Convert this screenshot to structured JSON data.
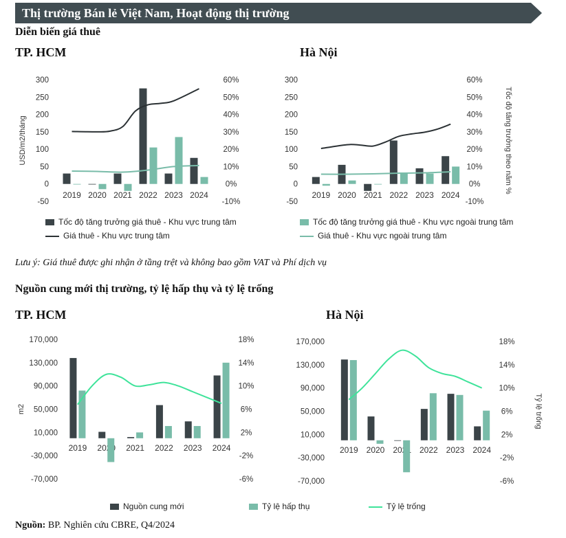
{
  "header": {
    "title": "Thị trường Bán lẻ Việt Nam, Hoạt động thị trường",
    "color": "#414d52"
  },
  "section1": {
    "title": "Diễn biến giá thuê",
    "note": "Lưu ý: Giá thuê được ghi nhận ở tầng trệt và không bao gồm VAT và Phí dịch vụ",
    "legend": {
      "bar_central": "Tốc độ tăng trưởng giá thuê - Khu vực trung tâm",
      "bar_noncentral": "Tốc độ tăng trưởng giá thuê - Khu vực ngoài trung tâm",
      "line_central": "Giá thuê - Khu vực trung tâm",
      "line_noncentral": "Giá thuê - Khu vực ngoài trung tâm"
    }
  },
  "section2": {
    "title": "Nguồn cung mới thị trường, tỷ lệ hấp thụ và tỷ lệ trống",
    "legend": {
      "supply": "Nguồn cung mới",
      "absorption": "Tỷ lệ hấp thụ",
      "vacancy": "Tỷ lệ trống"
    }
  },
  "source": {
    "label": "Nguồn:",
    "text": "BP. Nghiên cứu CBRE, Q4/2024"
  },
  "colors": {
    "dark": "#3b4448",
    "teal": "#79bca9",
    "green": "#3ee39a",
    "line_dark": "#2b3134"
  },
  "chart_data": [
    {
      "type": "bar",
      "city": "TP. HCM",
      "categories": [
        "2019",
        "2020",
        "2021",
        "2022",
        "2023",
        "2024"
      ],
      "ylabel": "USD/m2/tháng",
      "y2label": "",
      "ylim": [
        -50,
        300
      ],
      "yticks": [
        "300",
        "250",
        "200",
        "150",
        "100",
        "50",
        "0",
        "-50"
      ],
      "y2lim": [
        -10,
        60
      ],
      "y2ticks": [
        "60%",
        "50%",
        "40%",
        "30%",
        "20%",
        "10%",
        "0%",
        "-10%"
      ],
      "series": [
        {
          "name": "Tốc độ tăng trưởng giá thuê - Khu vực trung tâm",
          "kind": "bar",
          "axis": "right",
          "values": [
            6,
            0,
            6,
            55,
            6,
            15
          ]
        },
        {
          "name": "Tốc độ tăng trưởng giá thuê - Khu vực ngoài trung tâm",
          "kind": "bar",
          "axis": "right",
          "values": [
            -0.3,
            -3,
            -4,
            21,
            27,
            4
          ]
        },
        {
          "name": "Giá thuê - Khu vực trung tâm",
          "kind": "line",
          "axis": "left",
          "x": [
            0,
            1,
            1.5,
            2,
            2.5,
            3,
            3.5,
            4,
            5
          ],
          "values": [
            151,
            150,
            152,
            165,
            210,
            228,
            232,
            239,
            274
          ]
        },
        {
          "name": "Giá thuê - Khu vực ngoài trung tâm",
          "kind": "line",
          "axis": "left",
          "x": [
            0,
            1,
            2,
            3,
            4,
            5
          ],
          "values": [
            37,
            36,
            34,
            40,
            50,
            53
          ]
        }
      ]
    },
    {
      "type": "bar",
      "city": "Hà Nội",
      "categories": [
        "2019",
        "2020",
        "2021",
        "2022",
        "2023",
        "2024"
      ],
      "ylabel": "",
      "y2label": "Tốc độ tăng trưởng theo năm %",
      "ylim": [
        -50,
        300
      ],
      "yticks": [
        "300",
        "250",
        "200",
        "150",
        "100",
        "50",
        "0",
        "-50"
      ],
      "y2lim": [
        -10,
        60
      ],
      "y2ticks": [
        "60%",
        "50%",
        "40%",
        "30%",
        "20%",
        "10%",
        "0%",
        "-10%"
      ],
      "series": [
        {
          "name": "Tốc độ tăng trưởng giá thuê - Khu vực trung tâm",
          "kind": "bar",
          "axis": "right",
          "values": [
            4,
            11,
            -4,
            25,
            9,
            16
          ]
        },
        {
          "name": "Tốc độ tăng trưởng giá thuê - Khu vực ngoài trung tâm",
          "kind": "bar",
          "axis": "right",
          "values": [
            -1,
            2,
            -0.3,
            6,
            6,
            10
          ]
        },
        {
          "name": "Giá thuê - Khu vực trung tâm",
          "kind": "line",
          "axis": "left",
          "x": [
            0,
            1,
            1.5,
            2,
            2.5,
            3,
            3.5,
            4,
            4.5,
            5
          ],
          "values": [
            102,
            113,
            112,
            109,
            121,
            137,
            144,
            149,
            158,
            172
          ]
        },
        {
          "name": "Giá thuê - Khu vực ngoài trung tâm",
          "kind": "line",
          "axis": "left",
          "x": [
            0,
            1,
            2,
            3,
            4,
            5
          ],
          "values": [
            28,
            28,
            29,
            31,
            32,
            35
          ]
        }
      ]
    },
    {
      "type": "bar",
      "city": "TP. HCM",
      "categories": [
        "2019",
        "2020",
        "2021",
        "2022",
        "2023",
        "2024"
      ],
      "ylabel": "m2",
      "y2label": "",
      "ylim": [
        -70000,
        170000
      ],
      "yticks": [
        "170,000",
        "130,000",
        "90,000",
        "50,000",
        "10,000",
        "-30,000",
        "-70,000"
      ],
      "y2lim": [
        -6,
        18
      ],
      "y2ticks": [
        "18%",
        "14%",
        "10%",
        "6%",
        "2%",
        "-2%",
        "-6%"
      ],
      "series": [
        {
          "name": "Nguồn cung mới",
          "kind": "bar",
          "axis": "left",
          "values": [
            138000,
            11000,
            2000,
            57000,
            29000,
            108000
          ]
        },
        {
          "name": "Tỷ lệ hấp thụ",
          "kind": "bar",
          "axis": "left",
          "values": [
            82000,
            -41000,
            10000,
            21000,
            21000,
            130000
          ]
        },
        {
          "name": "Tỷ lệ trống",
          "kind": "line",
          "axis": "right",
          "x": [
            0,
            0.5,
            1,
            1.5,
            2,
            2.5,
            3,
            3.5,
            4,
            4.5,
            5
          ],
          "values": [
            6.8,
            10.0,
            12.0,
            11.5,
            10.0,
            10.2,
            10.6,
            10.0,
            9.0,
            8.0,
            7.0
          ]
        }
      ]
    },
    {
      "type": "bar",
      "city": "Hà Nội",
      "categories": [
        "2019",
        "2020",
        "2021",
        "2022",
        "2023",
        "2024"
      ],
      "ylabel": "",
      "y2label": "Tỷ lệ trống",
      "ylim": [
        -70000,
        170000
      ],
      "yticks": [
        "170,000",
        "130,000",
        "90,000",
        "50,000",
        "10,000",
        "-30,000",
        "-70,000"
      ],
      "y2lim": [
        -6,
        18
      ],
      "y2ticks": [
        "18%",
        "14%",
        "10%",
        "6%",
        "2%",
        "-2%",
        "-6%"
      ],
      "series": [
        {
          "name": "Nguồn cung mới",
          "kind": "bar",
          "axis": "left",
          "values": [
            139000,
            41000,
            0,
            54000,
            80000,
            24000
          ]
        },
        {
          "name": "Tỷ lệ hấp thụ",
          "kind": "bar",
          "axis": "left",
          "values": [
            138000,
            -6000,
            -55000,
            81000,
            78000,
            51000
          ]
        },
        {
          "name": "Tỷ lệ trống",
          "kind": "line",
          "axis": "right",
          "x": [
            0,
            0.5,
            1,
            1.5,
            2,
            2.5,
            3,
            3.5,
            4,
            4.5,
            5
          ],
          "values": [
            8.0,
            10.0,
            12.5,
            15.0,
            16.5,
            15.5,
            13.5,
            12.5,
            12.0,
            11.0,
            10.0
          ]
        }
      ]
    }
  ]
}
